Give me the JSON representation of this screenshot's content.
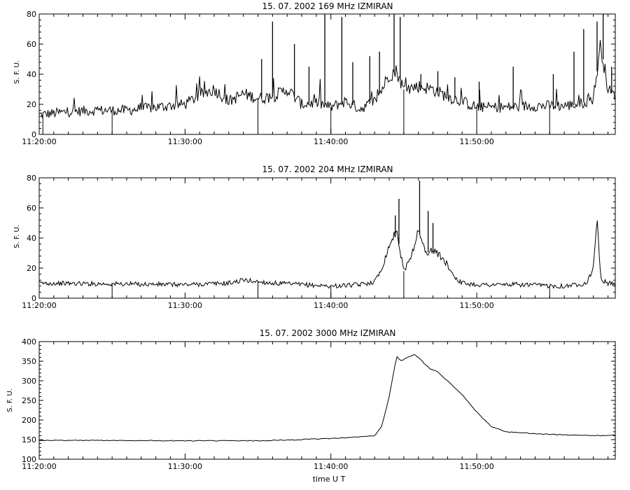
{
  "chart_data": [
    {
      "type": "line",
      "title": "15.  07.  2002    169  MHz     IZMIRAN",
      "ylabel": "S.  F.  U.",
      "xlabel": "",
      "ylim": [
        0,
        80
      ],
      "yticks": [
        0,
        20,
        40,
        60,
        80
      ],
      "xlim": [
        "11:20:00",
        "11:59:30"
      ],
      "xticks": [
        "11:20:00",
        "11:30:00",
        "11:40:00",
        "11:50:00"
      ],
      "grid": false,
      "x": [
        "11:20:00",
        "11:22:00",
        "11:24:00",
        "11:26:00",
        "11:28:00",
        "11:30:00",
        "11:31:00",
        "11:32:00",
        "11:33:00",
        "11:34:00",
        "11:35:00",
        "11:36:00",
        "11:37:00",
        "11:38:00",
        "11:39:00",
        "11:40:00",
        "11:41:00",
        "11:42:00",
        "11:43:00",
        "11:43:30",
        "11:44:00",
        "11:44:30",
        "11:45:00",
        "11:46:00",
        "11:47:00",
        "11:48:00",
        "11:49:00",
        "11:50:00",
        "11:52:00",
        "11:54:00",
        "11:56:00",
        "11:57:00",
        "11:58:00",
        "11:58:30",
        "11:59:00",
        "11:59:30"
      ],
      "values": [
        13,
        15,
        16,
        16,
        18,
        20,
        26,
        30,
        22,
        27,
        24,
        25,
        30,
        20,
        21,
        18,
        22,
        17,
        22,
        30,
        40,
        42,
        30,
        32,
        30,
        25,
        22,
        18,
        18,
        19,
        19,
        20,
        24,
        60,
        30,
        25
      ],
      "bursts": [
        [
          "11:35:15",
          50
        ],
        [
          "11:36:00",
          75
        ],
        [
          "11:37:30",
          60
        ],
        [
          "11:38:30",
          45
        ],
        [
          "11:39:35",
          80
        ],
        [
          "11:40:45",
          78
        ],
        [
          "11:41:30",
          48
        ],
        [
          "11:42:40",
          52
        ],
        [
          "11:43:20",
          55
        ],
        [
          "11:44:20",
          80
        ],
        [
          "11:44:45",
          78
        ],
        [
          "11:46:10",
          40
        ],
        [
          "11:47:20",
          42
        ],
        [
          "11:48:30",
          38
        ],
        [
          "11:50:10",
          35
        ],
        [
          "11:52:30",
          45
        ],
        [
          "11:55:15",
          40
        ],
        [
          "11:56:40",
          55
        ],
        [
          "11:57:20",
          70
        ],
        [
          "11:58:15",
          75
        ],
        [
          "11:58:40",
          80
        ],
        [
          "11:59:15",
          45
        ]
      ],
      "dips": [
        [
          "11:20:15",
          0
        ],
        [
          "11:25:00",
          0
        ],
        [
          "11:35:00",
          0
        ],
        [
          "11:40:00",
          0
        ],
        [
          "11:45:00",
          0
        ],
        [
          "11:50:00",
          0
        ],
        [
          "11:55:00",
          0
        ]
      ]
    },
    {
      "type": "line",
      "title": "15.  07.  2002    204  MHz     IZMIRAN",
      "ylabel": "S.  F.  U.",
      "xlabel": "",
      "ylim": [
        0,
        80
      ],
      "yticks": [
        0,
        20,
        40,
        60,
        80
      ],
      "xlim": [
        "11:20:00",
        "11:59:30"
      ],
      "xticks": [
        "11:20:00",
        "11:30:00",
        "11:40:00",
        "11:50:00"
      ],
      "grid": false,
      "x": [
        "11:20:00",
        "11:30:00",
        "11:33:00",
        "11:34:00",
        "11:36:00",
        "11:40:00",
        "11:42:00",
        "11:43:00",
        "11:43:30",
        "11:44:00",
        "11:44:30",
        "11:45:00",
        "11:45:30",
        "11:46:00",
        "11:46:30",
        "11:47:00",
        "11:47:30",
        "11:48:00",
        "11:48:30",
        "11:49:00",
        "11:50:00",
        "11:53:00",
        "11:56:00",
        "11:57:30",
        "11:58:00",
        "11:58:15",
        "11:58:30",
        "11:59:00",
        "11:59:30"
      ],
      "values": [
        10,
        9,
        10,
        12,
        10,
        8,
        9,
        11,
        20,
        35,
        45,
        18,
        28,
        45,
        30,
        32,
        28,
        22,
        14,
        10,
        9,
        9,
        8,
        10,
        20,
        55,
        12,
        10,
        9
      ],
      "bursts": [
        [
          "11:44:40",
          66
        ],
        [
          "11:46:05",
          78
        ],
        [
          "11:46:40",
          58
        ],
        [
          "11:47:00",
          50
        ],
        [
          "11:44:25",
          55
        ]
      ],
      "dips": [
        [
          "11:25:00",
          0
        ],
        [
          "11:35:00",
          0
        ],
        [
          "11:40:00",
          0
        ],
        [
          "11:45:00",
          0
        ],
        [
          "11:55:00",
          0
        ]
      ]
    },
    {
      "type": "line",
      "title": "15.  07.  2002    3000  MHz     IZMIRAN",
      "ylabel": "S.  F.  U.",
      "xlabel": "time  U  T",
      "ylim": [
        100,
        400
      ],
      "yticks": [
        100,
        150,
        200,
        250,
        300,
        350,
        400
      ],
      "xlim": [
        "11:20:00",
        "11:59:30"
      ],
      "xticks": [
        "11:20:00",
        "11:30:00",
        "11:40:00",
        "11:50:00"
      ],
      "grid": false,
      "x": [
        "11:20:00",
        "11:25:00",
        "11:30:00",
        "11:35:00",
        "11:38:00",
        "11:40:00",
        "11:42:00",
        "11:43:00",
        "11:43:30",
        "11:44:00",
        "11:44:30",
        "11:44:50",
        "11:45:15",
        "11:45:45",
        "11:46:15",
        "11:46:45",
        "11:47:15",
        "11:48:00",
        "11:49:00",
        "11:50:00",
        "11:51:00",
        "11:52:00",
        "11:54:00",
        "11:56:00",
        "11:58:00",
        "11:59:30"
      ],
      "values": [
        148,
        148,
        147,
        147,
        150,
        153,
        157,
        160,
        185,
        260,
        362,
        350,
        360,
        368,
        350,
        332,
        325,
        300,
        265,
        220,
        183,
        170,
        165,
        162,
        160,
        161
      ]
    }
  ]
}
